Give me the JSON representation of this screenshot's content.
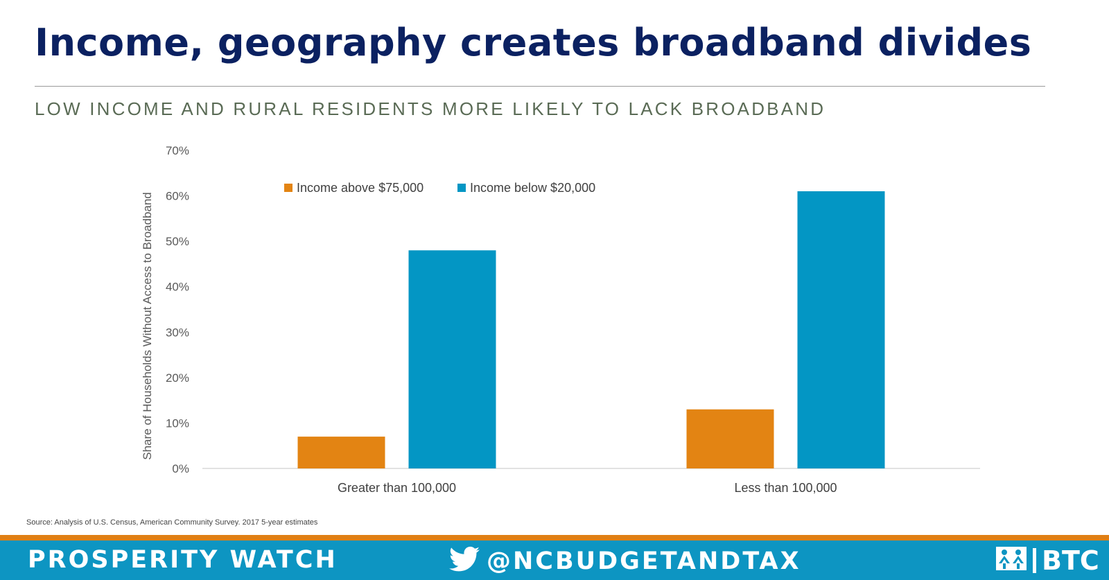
{
  "header": {
    "title": "Income, geography creates broadband divides",
    "subtitle": "LOW INCOME AND RURAL RESIDENTS MORE LIKELY TO LACK BROADBAND"
  },
  "chart_data": {
    "type": "bar",
    "ylabel": "Share of Households Without Access to Broadband",
    "xlabel": "",
    "ylim": [
      0,
      70
    ],
    "yticks": [
      "0%",
      "10%",
      "20%",
      "30%",
      "40%",
      "50%",
      "60%",
      "70%"
    ],
    "categories": [
      "Greater than 100,000",
      "Less than 100,000"
    ],
    "series": [
      {
        "name": "Income above $75,000",
        "values": [
          7,
          13
        ],
        "color": "#e38413"
      },
      {
        "name": "Income below $20,000",
        "values": [
          48,
          61
        ],
        "color": "#0396c4"
      }
    ],
    "legend_position": "top",
    "grid": false
  },
  "source": "Source: Analysis of U.S. Census, American Community Survey. 2017 5-year estimates",
  "footer": {
    "left_label": "PROSPERITY WATCH",
    "handle": "@NCBUDGETANDTAX",
    "logo_text": "BTC",
    "twitter_icon": "twitter-bird-icon",
    "accent_color": "#e07f14",
    "bar_color": "#0d95c2"
  }
}
